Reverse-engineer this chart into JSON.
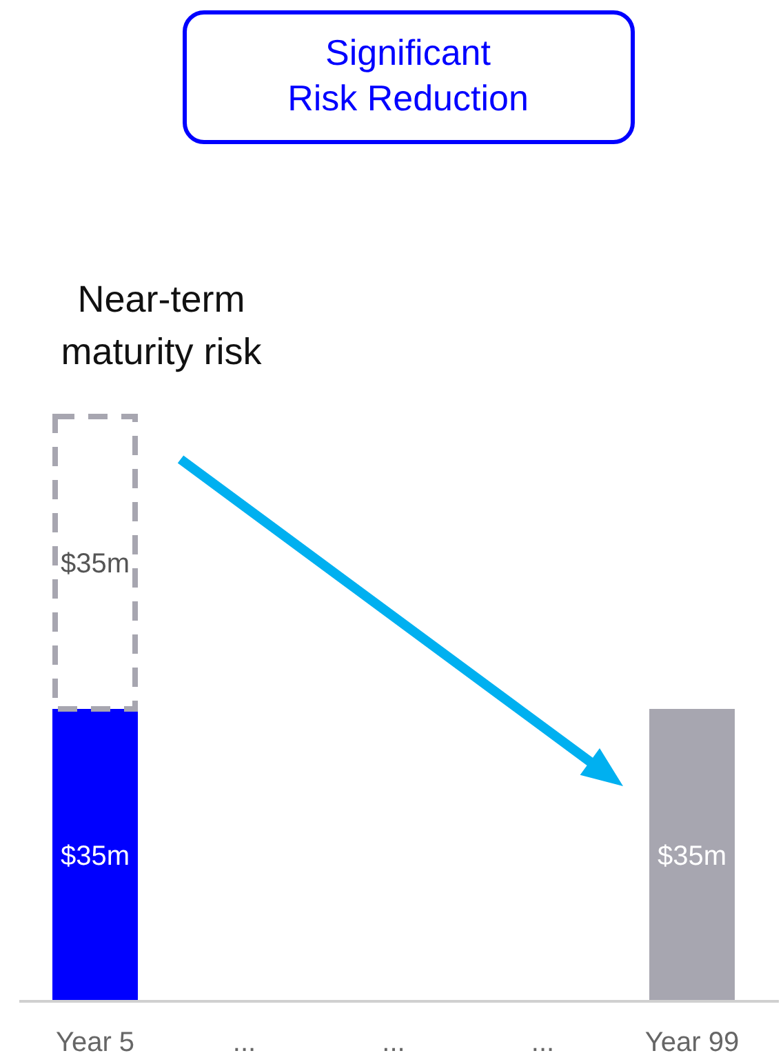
{
  "chart_data": {
    "type": "bar",
    "title": "Significant Risk Reduction",
    "annotations": [
      "Near-term maturity risk"
    ],
    "categories": [
      "Year 5",
      "...",
      "...",
      "...",
      "Year 99"
    ],
    "stacked": true,
    "series": [
      {
        "colors": [
          "#0000ff",
          null,
          null,
          null,
          "#a7a6b0"
        ],
        "values": [
          35,
          null,
          null,
          null,
          35
        ],
        "value_labels": [
          "$35m",
          null,
          null,
          null,
          "$35m"
        ]
      },
      {
        "color": "#a7a6b0",
        "line_style": "dashed",
        "values": [
          35,
          null,
          null,
          null,
          null
        ],
        "value_labels": [
          "$35m",
          null,
          null,
          null,
          null
        ]
      }
    ]
  }
}
